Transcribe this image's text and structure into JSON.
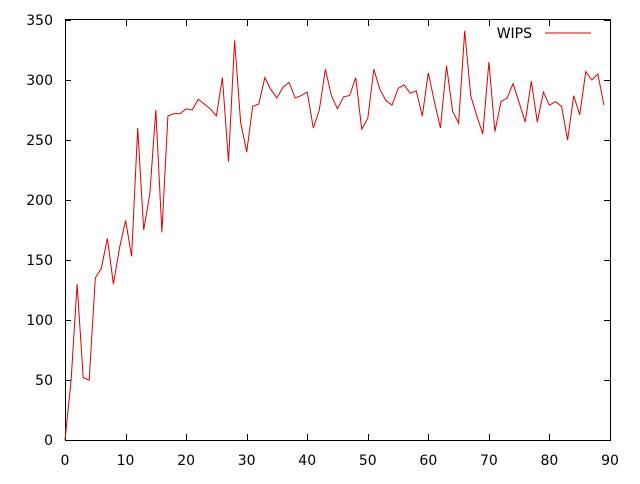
{
  "chart_data": {
    "type": "line",
    "title": "",
    "xlabel": "",
    "ylabel": "",
    "xlim": [
      0,
      90
    ],
    "ylim": [
      0,
      350
    ],
    "xticks": [
      0,
      10,
      20,
      30,
      40,
      50,
      60,
      70,
      80,
      90
    ],
    "yticks": [
      0,
      50,
      100,
      150,
      200,
      250,
      300,
      350
    ],
    "grid": false,
    "legend_position": "top-right",
    "series": [
      {
        "name": "WIPS",
        "color": "#e00000",
        "x": [
          0,
          1,
          2,
          3,
          4,
          5,
          6,
          7,
          8,
          9,
          10,
          11,
          12,
          13,
          14,
          15,
          16,
          17,
          18,
          19,
          20,
          21,
          22,
          23,
          24,
          25,
          26,
          27,
          28,
          29,
          30,
          31,
          32,
          33,
          34,
          35,
          36,
          37,
          38,
          39,
          40,
          41,
          42,
          43,
          44,
          45,
          46,
          47,
          48,
          49,
          50,
          51,
          52,
          53,
          54,
          55,
          56,
          57,
          58,
          59,
          60,
          61,
          62,
          63,
          64,
          65,
          66,
          67,
          68,
          69,
          70,
          71,
          72,
          73,
          74,
          75,
          76,
          77,
          78,
          79,
          80,
          81,
          82,
          83,
          84,
          85,
          86,
          87,
          88,
          89
        ],
        "y": [
          0,
          50,
          130,
          52,
          50,
          135,
          143,
          168,
          130,
          160,
          183,
          153,
          260,
          175,
          205,
          275,
          173,
          270,
          272,
          272,
          276,
          275,
          284,
          280,
          276,
          270,
          302,
          232,
          333,
          265,
          240,
          278,
          280,
          302,
          292,
          285,
          294,
          298,
          285,
          287,
          290,
          260,
          275,
          309,
          287,
          276,
          286,
          287,
          302,
          259,
          268,
          309,
          292,
          283,
          279,
          293,
          296,
          289,
          291,
          270,
          306,
          282,
          260,
          312,
          274,
          264,
          341,
          287,
          270,
          255,
          315,
          257,
          282,
          285,
          297,
          281,
          265,
          299,
          265,
          290,
          279,
          282,
          278,
          250,
          287,
          271,
          307,
          300,
          305,
          279
        ]
      }
    ]
  }
}
